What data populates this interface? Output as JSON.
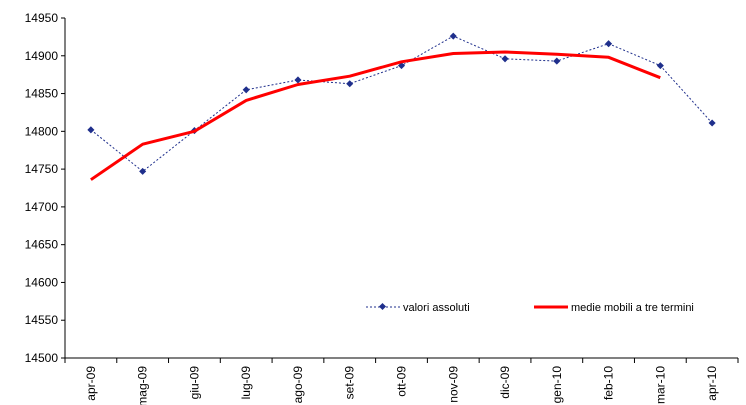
{
  "chart_data": {
    "type": "line",
    "categories": [
      "apr-09",
      "mag-09",
      "giu-09",
      "lug-09",
      "ago-09",
      "set-09",
      "ott-09",
      "nov-09",
      "dic-09",
      "gen-10",
      "feb-10",
      "mar-10",
      "apr-10"
    ],
    "series": [
      {
        "name": "valori assoluti",
        "values": [
          14802,
          14747,
          14801,
          14855,
          14868,
          14863,
          14887,
          14926,
          14896,
          14893,
          14916,
          14887,
          14811
        ],
        "color": "#1f2f8c",
        "style": "dotted-with-diamond-markers"
      },
      {
        "name": "medie mobili a tre termini",
        "values": [
          14736,
          14783,
          14800,
          14841,
          14862,
          14873,
          14892,
          14903,
          14905,
          14902,
          14898,
          14871,
          null
        ],
        "color": "#ff0000",
        "style": "solid-thick"
      }
    ],
    "ylim": [
      14500,
      14950
    ],
    "yticks": [
      "14500",
      "14550",
      "14600",
      "14650",
      "14700",
      "14750",
      "14800",
      "14850",
      "14900",
      "14950"
    ],
    "grid": false,
    "legend_position": "bottom-right, inside plot"
  }
}
